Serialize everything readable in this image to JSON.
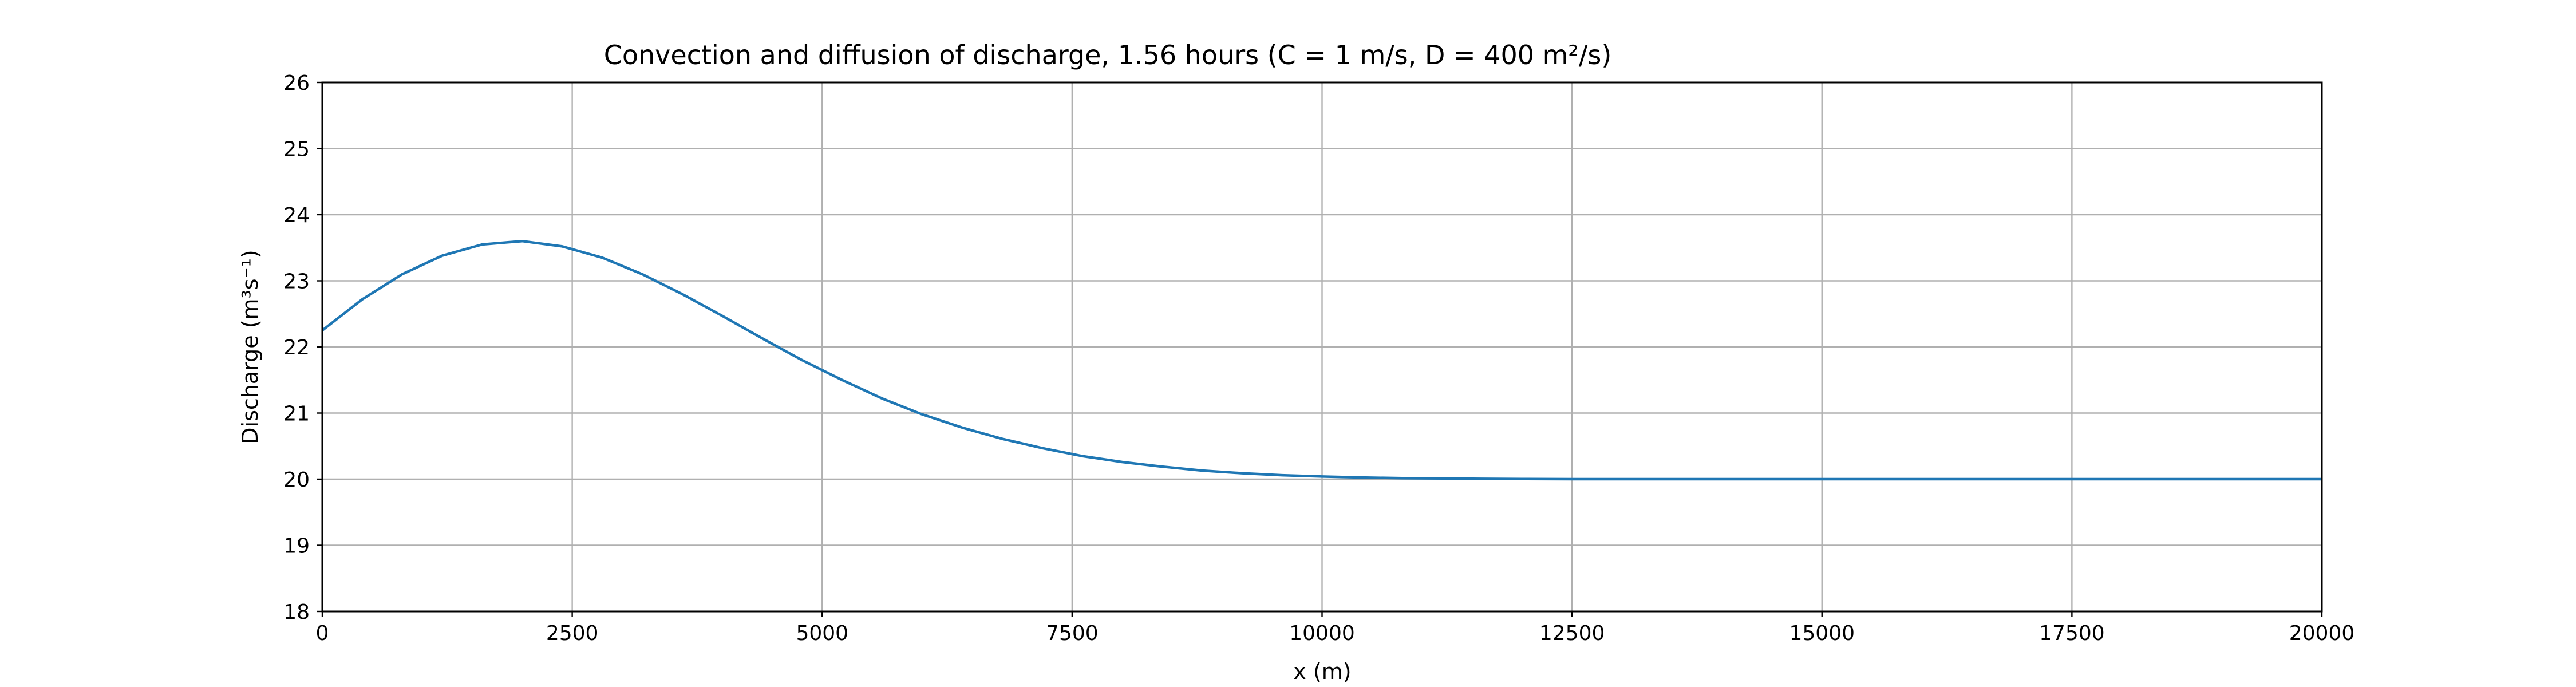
{
  "chart_data": {
    "type": "line",
    "title": "Convection and diffusion of discharge, 1.56 hours (C = 1 m/s, D = 400 m²/s)",
    "xlabel": "x (m)",
    "ylabel": "Discharge (m³s⁻¹)",
    "xlim": [
      0,
      20000
    ],
    "ylim": [
      18,
      26
    ],
    "x_ticks": [
      0,
      2500,
      5000,
      7500,
      10000,
      12500,
      15000,
      17500,
      20000
    ],
    "y_ticks": [
      18,
      19,
      20,
      21,
      22,
      23,
      24,
      25,
      26
    ],
    "grid": true,
    "line_color": "#1f77b4",
    "series": [
      {
        "x": [
          0,
          400,
          800,
          1200,
          1600,
          2000,
          2400,
          2800,
          3200,
          3600,
          4000,
          4400,
          4800,
          5200,
          5600,
          6000,
          6400,
          6800,
          7200,
          7600,
          8000,
          8400,
          8800,
          9200,
          9600,
          10000,
          10400,
          10800,
          11200,
          11600,
          12000,
          12500,
          13000,
          14000,
          15000,
          16000,
          17000,
          18000,
          19000,
          20000
        ],
        "y": [
          22.25,
          22.72,
          23.1,
          23.38,
          23.55,
          23.6,
          23.52,
          23.35,
          23.1,
          22.8,
          22.47,
          22.13,
          21.8,
          21.5,
          21.22,
          20.98,
          20.78,
          20.61,
          20.47,
          20.35,
          20.26,
          20.19,
          20.13,
          20.09,
          20.06,
          20.04,
          20.025,
          20.015,
          20.01,
          20.005,
          20.003,
          20.0,
          20.0,
          20.0,
          20.0,
          20.0,
          20.0,
          20.0,
          20.0,
          20.0
        ]
      }
    ]
  }
}
